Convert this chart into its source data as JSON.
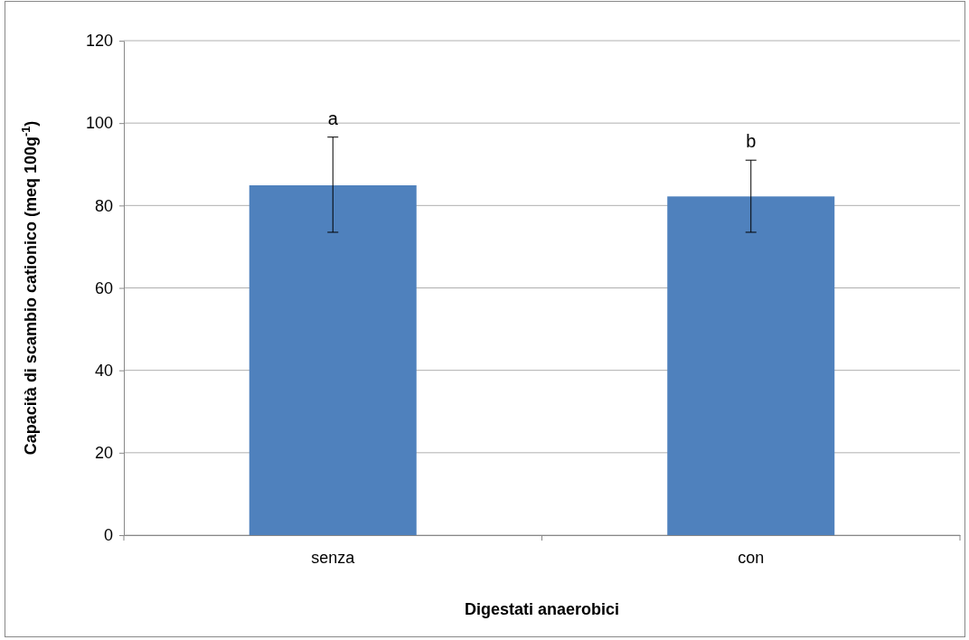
{
  "chart_data": {
    "type": "bar",
    "xlabel": "Digestati anaerobici",
    "ylabel": "Capacità di scambio cationico (meq 100g$^{-1}$)",
    "categories": [
      "senza",
      "con"
    ],
    "values": [
      84.9,
      82.2
    ],
    "color": "#4f81bd",
    "errors": [
      [
        73.5,
        96.6
      ],
      [
        73.5,
        91.0
      ]
    ],
    "ylim": [
      0,
      120
    ],
    "yticks": [
      0,
      20,
      40,
      60,
      80,
      100,
      120
    ],
    "grid": "y",
    "annotations": [
      {
        "text": "a",
        "x": "senza",
        "y": 96.6
      },
      {
        "text": "b",
        "x": "con",
        "y": 91.0
      }
    ]
  }
}
